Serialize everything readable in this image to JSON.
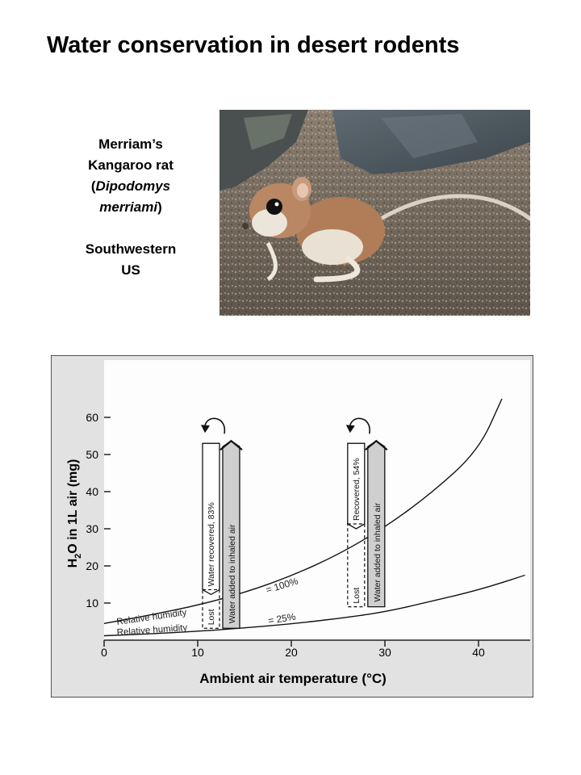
{
  "title": "Water conservation in desert rodents",
  "caption": {
    "line1": "Merriam’s",
    "line2": "Kangaroo rat",
    "sci_open": "(",
    "sci_name1": "Dipodomys",
    "sci_name2": "merriami",
    "sci_close": ")",
    "region1": "Southwestern",
    "region2": "US"
  },
  "photo": {
    "subject": "kangaroo-rat-photo"
  },
  "chart_data": {
    "type": "line",
    "xlabel": "Ambient air temperature (°C)",
    "ylabel_parts": [
      "H",
      "2",
      "O in 1L air (mg)"
    ],
    "xlim": [
      0,
      45
    ],
    "ylim": [
      0,
      67
    ],
    "xticks": [
      0,
      10,
      20,
      30,
      40
    ],
    "yticks": [
      10,
      20,
      30,
      40,
      50,
      60
    ],
    "grid": false,
    "series": [
      {
        "name": "Relative humidity = 100%",
        "label_left": "Relative humidity",
        "label_right": "= 100%",
        "x": [
          0,
          5,
          10,
          15,
          20,
          25,
          30,
          35,
          40,
          42.5
        ],
        "y": [
          4.5,
          6.8,
          9.4,
          12.8,
          17.3,
          23.0,
          30.4,
          39.6,
          51.1,
          65
        ]
      },
      {
        "name": "Relative humidity = 25%",
        "label_left": "Relative humidity",
        "label_right": "= 25%",
        "x": [
          0,
          5,
          10,
          15,
          20,
          25,
          30,
          35,
          40,
          45
        ],
        "y": [
          1.2,
          1.7,
          2.4,
          3.3,
          4.4,
          5.8,
          7.6,
          10.5,
          13.5,
          17.5
        ]
      }
    ],
    "annotations": [
      {
        "x_center": 12.5,
        "recovered_label": "Water recovered, 83%",
        "lost_label": "Lost",
        "added_label": "Water added to inhaled air",
        "y_low": 3.2,
        "y_split": 12.3,
        "y_top": 53
      },
      {
        "x_center": 28,
        "recovered_label": "Recovered, 54%",
        "lost_label": "Lost",
        "added_label": "Water added to inhaled air",
        "y_low": 9.0,
        "y_split": 30.0,
        "y_top": 53
      }
    ]
  }
}
